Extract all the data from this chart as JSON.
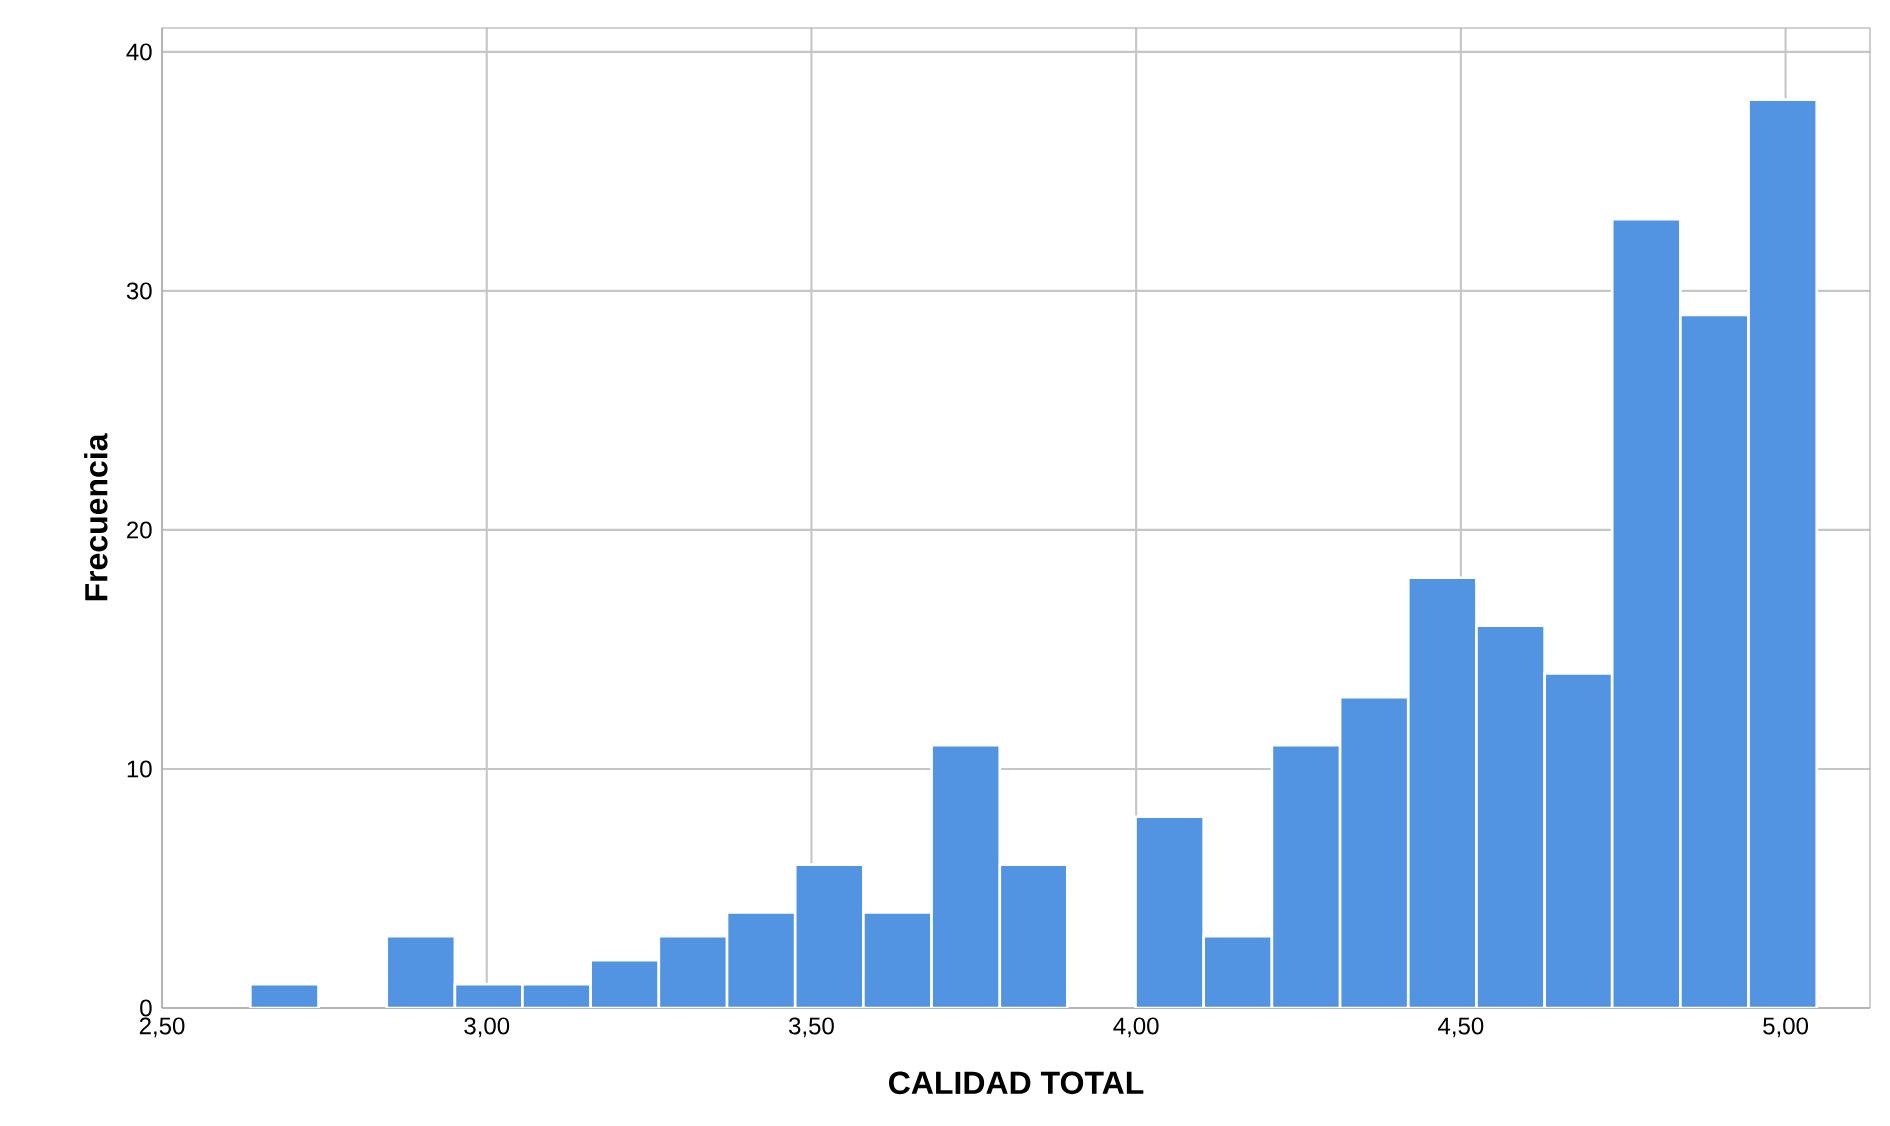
{
  "chart_data": {
    "type": "histogram",
    "xlabel": "CALIDAD TOTAL",
    "ylabel": "Frecuencia",
    "color": "#5294e2",
    "bins": [
      2.636,
      2.741,
      2.846,
      2.951,
      3.055,
      3.16,
      3.265,
      3.37,
      3.475,
      3.58,
      3.685,
      3.79,
      3.894,
      3.999,
      4.104,
      4.209,
      4.314,
      4.419,
      4.524,
      4.629,
      4.733,
      4.838,
      4.943,
      5.048
    ],
    "values": [
      1,
      0,
      3,
      1,
      1,
      2,
      3,
      4,
      6,
      4,
      11,
      6,
      0,
      8,
      3,
      11,
      13,
      18,
      16,
      14,
      33,
      29,
      38
    ],
    "xlim": [
      2.5,
      5.13
    ],
    "ylim": [
      0,
      41
    ],
    "xticks": [
      {
        "value": 2.5,
        "label": "2,50"
      },
      {
        "value": 3.0,
        "label": "3,00"
      },
      {
        "value": 3.5,
        "label": "3,50"
      },
      {
        "value": 4.0,
        "label": "4,00"
      },
      {
        "value": 4.5,
        "label": "4,50"
      },
      {
        "value": 5.0,
        "label": "5,00"
      }
    ],
    "yticks": [
      0,
      10,
      20,
      30,
      40
    ],
    "grid": true
  }
}
